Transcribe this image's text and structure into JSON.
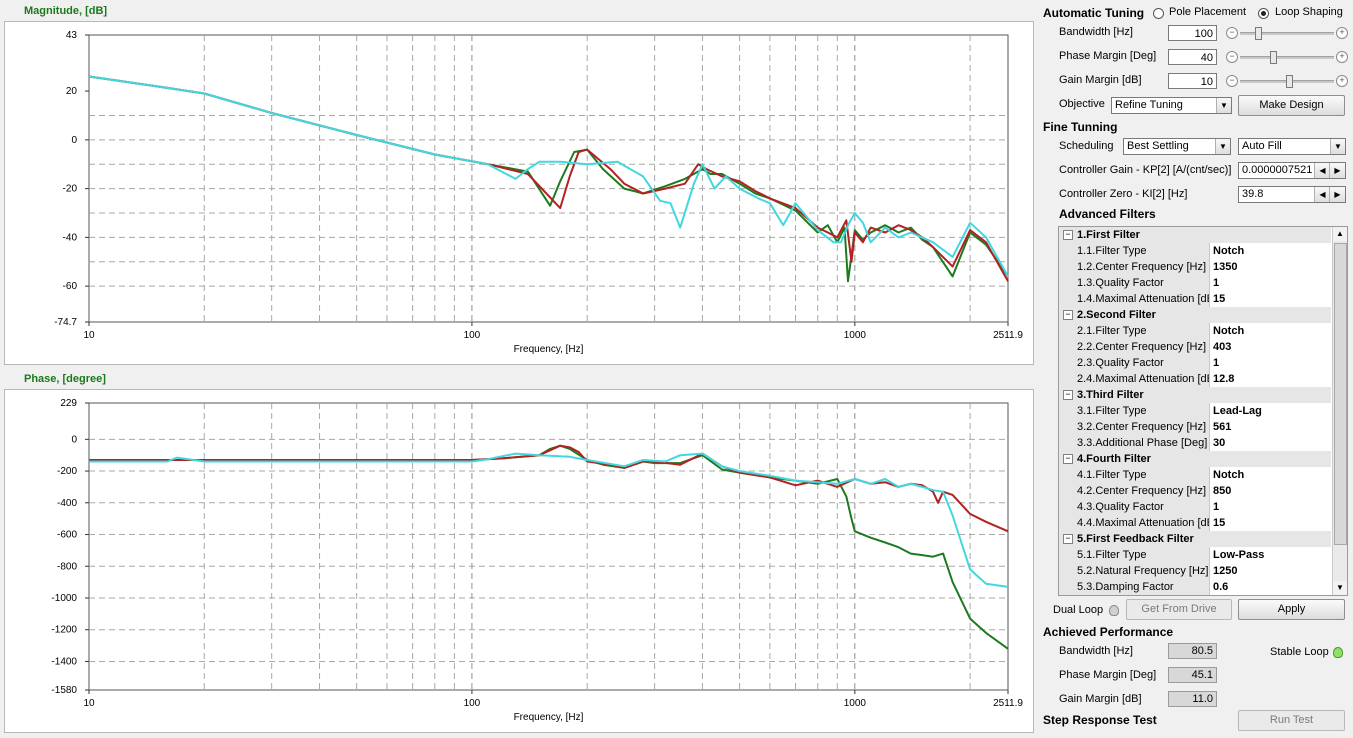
{
  "magnitude_title": "Magnitude, [dB]",
  "phase_title": "Phase, [degree]",
  "automatic_tuning": {
    "title": "Automatic Tuning",
    "mode_options": [
      "Pole Placement",
      "Loop Shaping"
    ],
    "selected_mode": "Loop Shaping",
    "bandwidth_label": "Bandwidth [Hz]",
    "bandwidth_value": "100",
    "phase_margin_label": "Phase Margin [Deg]",
    "phase_margin_value": "40",
    "gain_margin_label": "Gain Margin [dB]",
    "gain_margin_value": "10",
    "objective_label": "Objective",
    "objective_value": "Refine Tuning",
    "make_design_label": "Make Design",
    "sliders": {
      "bandwidth": 0.12,
      "phase_margin": 0.4,
      "gain_margin": 0.6
    }
  },
  "fine_tuning": {
    "title": "Fine Tunning",
    "scheduling_label": "Scheduling",
    "scheduling_value": "Best Settling",
    "autofill_value": "Auto Fill",
    "kp_label": "Controller Gain - KP[2] [A/(cnt/sec)]",
    "kp_value": "0.0000007521",
    "ki_label": "Controller Zero - KI[2] [Hz]",
    "ki_value": "39.8"
  },
  "advanced_filters": {
    "title": "Advanced Filters",
    "rows": [
      {
        "type": "cat",
        "text": "1.First Filter"
      },
      {
        "type": "prop",
        "name": "1.1.Filter Type",
        "value": "Notch"
      },
      {
        "type": "prop",
        "name": "1.2.Center Frequency [Hz]",
        "value": "1350"
      },
      {
        "type": "prop",
        "name": "1.3.Quality Factor",
        "value": "1"
      },
      {
        "type": "prop",
        "name": "1.4.Maximal Attenuation [dE",
        "value": "15"
      },
      {
        "type": "cat",
        "text": "2.Second Filter"
      },
      {
        "type": "prop",
        "name": "2.1.Filter Type",
        "value": "Notch"
      },
      {
        "type": "prop",
        "name": "2.2.Center Frequency [Hz]",
        "value": "403"
      },
      {
        "type": "prop",
        "name": "2.3.Quality Factor",
        "value": "1"
      },
      {
        "type": "prop",
        "name": "2.4.Maximal Attenuation [dE",
        "value": "12.8"
      },
      {
        "type": "cat",
        "text": "3.Third Filter"
      },
      {
        "type": "prop",
        "name": "3.1.Filter Type",
        "value": "Lead-Lag"
      },
      {
        "type": "prop",
        "name": "3.2.Center Frequency [Hz]",
        "value": "561"
      },
      {
        "type": "prop",
        "name": "3.3.Additional Phase [Deg]",
        "value": "30"
      },
      {
        "type": "cat",
        "text": "4.Fourth Filter"
      },
      {
        "type": "prop",
        "name": "4.1.Filter Type",
        "value": "Notch"
      },
      {
        "type": "prop",
        "name": "4.2.Center Frequency [Hz]",
        "value": "850"
      },
      {
        "type": "prop",
        "name": "4.3.Quality Factor",
        "value": "1"
      },
      {
        "type": "prop",
        "name": "4.4.Maximal Attenuation [dE",
        "value": "15"
      },
      {
        "type": "cat",
        "text": "5.First Feedback Filter"
      },
      {
        "type": "prop",
        "name": "5.1.Filter Type",
        "value": "Low-Pass"
      },
      {
        "type": "prop",
        "name": "5.2.Natural Frequency [Hz]",
        "value": "1250"
      },
      {
        "type": "prop",
        "name": "5.3.Damping Factor",
        "value": "0.6"
      }
    ]
  },
  "dual_loop_label": "Dual Loop",
  "get_from_drive_label": "Get From Drive",
  "apply_label": "Apply",
  "achieved": {
    "title": "Achieved Performance",
    "bandwidth_label": "Bandwidth [Hz]",
    "bandwidth_value": "80.5",
    "phase_margin_label": "Phase Margin [Deg]",
    "phase_margin_value": "45.1",
    "gain_margin_label": "Gain Margin [dB]",
    "gain_margin_value": "11.0",
    "stable_loop_label": "Stable Loop"
  },
  "step_response_label": "Step Response Test",
  "run_test_label": "Run Test",
  "colors": {
    "green": "#1e7a1e",
    "red": "#b22222",
    "cyan": "#40d8e0",
    "title_green": "#1a7a1a"
  },
  "chart_data": [
    {
      "type": "line",
      "xscale": "log",
      "xlim": [
        10,
        2511.9
      ],
      "ylim": [
        -74.7,
        43
      ],
      "xlabel": "Frequency, [Hz]",
      "ylabel": "Magnitude, [dB]",
      "x_ticks": [
        "10",
        "100",
        "1000",
        "2511.9"
      ],
      "y_ticks": [
        "43",
        "20",
        "0",
        "-20",
        "-40",
        "-60",
        "-74.7"
      ],
      "grid": true,
      "series": [
        {
          "color": "green",
          "x": [
            10,
            15,
            20,
            30,
            50,
            80,
            110,
            140,
            160,
            170,
            185,
            200,
            220,
            250,
            280,
            320,
            360,
            400,
            420,
            450,
            500,
            550,
            600,
            700,
            800,
            850,
            900,
            940,
            960,
            1000,
            1050,
            1100,
            1200,
            1300,
            1400,
            1500,
            1600,
            1800,
            2000,
            2200,
            2511.9
          ],
          "y": [
            26,
            22,
            19,
            11,
            2,
            -6,
            -10,
            -13,
            -27,
            -17,
            -5,
            -4,
            -12,
            -20,
            -22,
            -19,
            -16,
            -12,
            -14,
            -14,
            -18,
            -22,
            -24,
            -29,
            -38,
            -35,
            -42,
            -36,
            -58,
            -37,
            -41,
            -38,
            -35,
            -38,
            -36,
            -41,
            -44,
            -56,
            -38,
            -43,
            -56
          ]
        },
        {
          "color": "red",
          "x": [
            10,
            15,
            20,
            30,
            50,
            80,
            110,
            140,
            170,
            180,
            190,
            200,
            230,
            250,
            280,
            320,
            360,
            390,
            410,
            450,
            500,
            550,
            600,
            700,
            800,
            850,
            900,
            950,
            980,
            1000,
            1050,
            1100,
            1200,
            1300,
            1400,
            1500,
            1600,
            1800,
            2000,
            2200,
            2511.9
          ],
          "y": [
            26,
            22,
            19,
            11,
            2,
            -6,
            -10,
            -14,
            -28,
            -15,
            -5,
            -4,
            -12,
            -18,
            -22,
            -20,
            -18,
            -10,
            -12,
            -15,
            -17,
            -21,
            -24,
            -28,
            -36,
            -38,
            -40,
            -33,
            -50,
            -38,
            -42,
            -36,
            -38,
            -35,
            -37,
            -40,
            -44,
            -52,
            -37,
            -42,
            -58
          ]
        },
        {
          "color": "cyan",
          "x": [
            10,
            15,
            20,
            30,
            50,
            80,
            110,
            130,
            140,
            150,
            170,
            200,
            240,
            280,
            310,
            330,
            350,
            380,
            400,
            430,
            460,
            500,
            560,
            600,
            650,
            700,
            800,
            880,
            920,
            960,
            1000,
            1050,
            1100,
            1200,
            1300,
            1400,
            1600,
            1800,
            2000,
            2200,
            2511.9
          ],
          "y": [
            26,
            22,
            19,
            11,
            2,
            -6,
            -10,
            -16,
            -12,
            -9,
            -9,
            -10,
            -9,
            -15,
            -25,
            -26,
            -36,
            -18,
            -10,
            -20,
            -15,
            -20,
            -24,
            -26,
            -35,
            -26,
            -37,
            -42,
            -42,
            -35,
            -30,
            -34,
            -42,
            -36,
            -40,
            -38,
            -42,
            -48,
            -34,
            -40,
            -56
          ]
        }
      ]
    },
    {
      "type": "line",
      "xscale": "log",
      "xlim": [
        10,
        2511.9
      ],
      "ylim": [
        -1580,
        229
      ],
      "xlabel": "Frequency, [Hz]",
      "ylabel": "Phase, [degree]",
      "x_ticks": [
        "10",
        "100",
        "1000",
        "2511.9"
      ],
      "y_ticks": [
        "229",
        "0",
        "-200",
        "-400",
        "-600",
        "-800",
        "-1000",
        "-1200",
        "-1400",
        "-1580"
      ],
      "grid": true,
      "series": [
        {
          "color": "green",
          "x": [
            10,
            20,
            50,
            100,
            120,
            150,
            160,
            170,
            180,
            200,
            220,
            250,
            280,
            300,
            350,
            400,
            450,
            500,
            600,
            700,
            800,
            900,
            950,
            980,
            1000,
            1100,
            1200,
            1300,
            1400,
            1500,
            1600,
            1700,
            1800,
            2000,
            2200,
            2511.9
          ],
          "y": [
            -130,
            -130,
            -130,
            -130,
            -120,
            -100,
            -60,
            -40,
            -60,
            -130,
            -160,
            -180,
            -140,
            -150,
            -150,
            -100,
            -190,
            -210,
            -240,
            -260,
            -280,
            -250,
            -360,
            -500,
            -580,
            -620,
            -650,
            -680,
            -720,
            -730,
            -740,
            -720,
            -900,
            -1130,
            -1220,
            -1320
          ]
        },
        {
          "color": "red",
          "x": [
            10,
            20,
            50,
            100,
            120,
            150,
            170,
            180,
            190,
            200,
            230,
            250,
            280,
            300,
            350,
            400,
            450,
            500,
            600,
            700,
            800,
            900,
            1000,
            1100,
            1200,
            1300,
            1400,
            1500,
            1600,
            1650,
            1700,
            1800,
            2000,
            2200,
            2511.9
          ],
          "y": [
            -130,
            -130,
            -130,
            -130,
            -120,
            -100,
            -40,
            -50,
            -80,
            -140,
            -160,
            -180,
            -140,
            -140,
            -160,
            -90,
            -170,
            -210,
            -240,
            -290,
            -260,
            -300,
            -250,
            -280,
            -270,
            -300,
            -280,
            -290,
            -330,
            -400,
            -330,
            -350,
            -470,
            -520,
            -580
          ]
        },
        {
          "color": "cyan",
          "x": [
            10,
            16,
            17,
            20,
            50,
            100,
            110,
            130,
            150,
            180,
            200,
            250,
            280,
            320,
            350,
            400,
            450,
            500,
            600,
            700,
            800,
            900,
            1000,
            1100,
            1200,
            1300,
            1400,
            1500,
            1600,
            1700,
            1800,
            2000,
            2200,
            2511.9
          ],
          "y": [
            -140,
            -140,
            -115,
            -140,
            -140,
            -140,
            -125,
            -90,
            -100,
            -110,
            -130,
            -170,
            -130,
            -140,
            -100,
            -90,
            -170,
            -200,
            -230,
            -260,
            -270,
            -280,
            -250,
            -280,
            -250,
            -300,
            -280,
            -300,
            -320,
            -330,
            -480,
            -820,
            -910,
            -930
          ]
        }
      ]
    }
  ]
}
